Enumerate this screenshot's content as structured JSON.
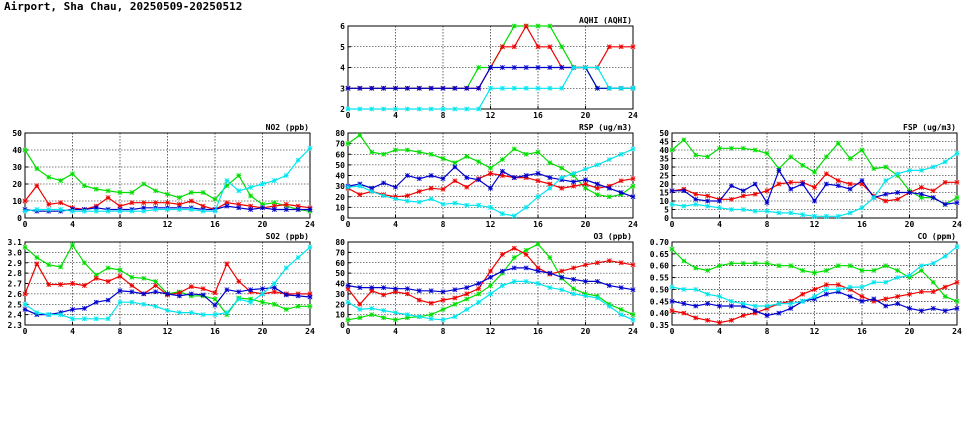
{
  "page": {
    "title": "Airport, Sha Chau, 20250509-20250512"
  },
  "series_colors": {
    "green": "#00dd00",
    "red": "#ee0000",
    "blue": "#0000cc",
    "cyan": "#00e5ee"
  },
  "chart_data": [
    {
      "id": "aqhi",
      "type": "line",
      "title": "AQHI (AQHI)",
      "x": [
        0,
        1,
        2,
        3,
        4,
        5,
        6,
        7,
        8,
        9,
        10,
        11,
        12,
        13,
        14,
        15,
        16,
        17,
        18,
        19,
        20,
        21,
        22,
        23,
        24
      ],
      "xticks": [
        0,
        4,
        8,
        12,
        16,
        20,
        24
      ],
      "ylim": [
        2,
        6
      ],
      "yticks": [
        2,
        3,
        4,
        5,
        6
      ],
      "grid": true,
      "series": [
        {
          "color": "green",
          "values": [
            3,
            3,
            3,
            3,
            3,
            3,
            3,
            3,
            3,
            3,
            3,
            4,
            4,
            5,
            6,
            6,
            6,
            6,
            5,
            4,
            4,
            3,
            3,
            3,
            3
          ]
        },
        {
          "color": "red",
          "values": [
            3,
            3,
            3,
            3,
            3,
            3,
            3,
            3,
            3,
            3,
            3,
            3,
            4,
            5,
            5,
            6,
            5,
            5,
            4,
            4,
            4,
            4,
            5,
            5,
            5
          ]
        },
        {
          "color": "blue",
          "values": [
            3,
            3,
            3,
            3,
            3,
            3,
            3,
            3,
            3,
            3,
            3,
            3,
            4,
            4,
            4,
            4,
            4,
            4,
            4,
            4,
            4,
            3,
            3,
            3,
            3
          ]
        },
        {
          "color": "cyan",
          "values": [
            2,
            2,
            2,
            2,
            2,
            2,
            2,
            2,
            2,
            2,
            2,
            2,
            3,
            3,
            3,
            3,
            3,
            3,
            3,
            4,
            4,
            4,
            3,
            3,
            3
          ]
        }
      ]
    },
    {
      "id": "no2",
      "type": "line",
      "title": "NO2 (ppb)",
      "x": [
        0,
        1,
        2,
        3,
        4,
        5,
        6,
        7,
        8,
        9,
        10,
        11,
        12,
        13,
        14,
        15,
        16,
        17,
        18,
        19,
        20,
        21,
        22,
        23,
        24
      ],
      "xticks": [
        0,
        4,
        8,
        12,
        16,
        20,
        24
      ],
      "ylim": [
        0,
        50
      ],
      "yticks": [
        0,
        10,
        20,
        30,
        40,
        50
      ],
      "grid": true,
      "series": [
        {
          "color": "green",
          "values": [
            40,
            29,
            24,
            22,
            26,
            19,
            17,
            16,
            15,
            15,
            20,
            16,
            14,
            12,
            15,
            15,
            11,
            19,
            25,
            13,
            8,
            9,
            7,
            5,
            4
          ]
        },
        {
          "color": "red",
          "values": [
            10,
            19,
            8,
            9,
            6,
            5,
            7,
            12,
            7,
            9,
            9,
            9,
            9,
            8,
            10,
            7,
            5,
            9,
            8,
            7,
            6,
            7,
            8,
            7,
            6
          ]
        },
        {
          "color": "blue",
          "values": [
            5,
            4,
            4,
            4,
            5,
            5,
            6,
            5,
            5,
            5,
            6,
            6,
            6,
            6,
            6,
            5,
            5,
            7,
            6,
            5,
            6,
            5,
            5,
            5,
            5
          ]
        },
        {
          "color": "cyan",
          "values": [
            4,
            5,
            5,
            5,
            4,
            4,
            4,
            4,
            4,
            4,
            4,
            5,
            5,
            5,
            5,
            4,
            4,
            22,
            16,
            18,
            20,
            22,
            25,
            34,
            41
          ]
        }
      ]
    },
    {
      "id": "rsp",
      "type": "line",
      "title": "RSP (ug/m3)",
      "x": [
        0,
        1,
        2,
        3,
        4,
        5,
        6,
        7,
        8,
        9,
        10,
        11,
        12,
        13,
        14,
        15,
        16,
        17,
        18,
        19,
        20,
        21,
        22,
        23,
        24
      ],
      "xticks": [
        0,
        4,
        8,
        12,
        16,
        20,
        24
      ],
      "ylim": [
        0,
        80
      ],
      "yticks": [
        0,
        10,
        20,
        30,
        40,
        50,
        60,
        70,
        80
      ],
      "grid": true,
      "series": [
        {
          "color": "green",
          "values": [
            70,
            78,
            62,
            60,
            64,
            64,
            62,
            60,
            56,
            52,
            58,
            53,
            47,
            55,
            65,
            60,
            62,
            52,
            47,
            40,
            28,
            22,
            20,
            22,
            30
          ]
        },
        {
          "color": "red",
          "values": [
            28,
            22,
            25,
            22,
            20,
            21,
            25,
            28,
            27,
            35,
            29,
            37,
            42,
            40,
            38,
            38,
            35,
            32,
            28,
            30,
            32,
            28,
            30,
            35,
            37
          ]
        },
        {
          "color": "blue",
          "values": [
            30,
            32,
            28,
            33,
            29,
            40,
            37,
            40,
            37,
            48,
            38,
            36,
            28,
            44,
            38,
            40,
            42,
            38,
            36,
            34,
            36,
            32,
            28,
            24,
            20
          ]
        },
        {
          "color": "cyan",
          "values": [
            29,
            30,
            25,
            21,
            18,
            16,
            15,
            18,
            13,
            14,
            12,
            12,
            10,
            4,
            2,
            10,
            20,
            28,
            38,
            42,
            46,
            50,
            55,
            60,
            65
          ]
        }
      ]
    },
    {
      "id": "fsp",
      "type": "line",
      "title": "FSP (ug/m3)",
      "x": [
        0,
        1,
        2,
        3,
        4,
        5,
        6,
        7,
        8,
        9,
        10,
        11,
        12,
        13,
        14,
        15,
        16,
        17,
        18,
        19,
        20,
        21,
        22,
        23,
        24
      ],
      "xticks": [
        0,
        4,
        8,
        12,
        16,
        20,
        24
      ],
      "ylim": [
        0,
        50
      ],
      "yticks": [
        0,
        5,
        10,
        15,
        20,
        25,
        30,
        35,
        40,
        45,
        50
      ],
      "grid": true,
      "series": [
        {
          "color": "green",
          "values": [
            40,
            46,
            37,
            36,
            41,
            41,
            41,
            40,
            38,
            29,
            36,
            31,
            27,
            36,
            44,
            35,
            40,
            29,
            30,
            25,
            16,
            12,
            12,
            8,
            12
          ]
        },
        {
          "color": "red",
          "values": [
            16,
            17,
            14,
            13,
            11,
            11,
            13,
            14,
            16,
            20,
            21,
            21,
            18,
            26,
            22,
            20,
            20,
            13,
            10,
            11,
            15,
            18,
            16,
            21,
            21
          ]
        },
        {
          "color": "blue",
          "values": [
            16,
            16,
            11,
            10,
            10,
            19,
            16,
            20,
            9,
            28,
            17,
            20,
            10,
            20,
            19,
            17,
            22,
            12,
            14,
            15,
            15,
            14,
            12,
            8,
            9
          ]
        },
        {
          "color": "cyan",
          "values": [
            8,
            7,
            8,
            7,
            6,
            5,
            5,
            4,
            4,
            3,
            3,
            2,
            1,
            1,
            1,
            3,
            6,
            12,
            22,
            26,
            28,
            28,
            30,
            33,
            38
          ]
        }
      ]
    },
    {
      "id": "so2",
      "type": "line",
      "title": "SO2 (ppb)",
      "x": [
        0,
        1,
        2,
        3,
        4,
        5,
        6,
        7,
        8,
        9,
        10,
        11,
        12,
        13,
        14,
        15,
        16,
        17,
        18,
        19,
        20,
        21,
        22,
        23,
        24
      ],
      "xticks": [
        0,
        4,
        8,
        12,
        16,
        20,
        24
      ],
      "ylim": [
        2.3,
        3.1
      ],
      "yticks": [
        2.3,
        2.4,
        2.5,
        2.6,
        2.7,
        2.8,
        2.9,
        3.0,
        3.1
      ],
      "grid": true,
      "series": [
        {
          "color": "green",
          "values": [
            3.05,
            2.95,
            2.88,
            2.86,
            3.07,
            2.9,
            2.78,
            2.85,
            2.83,
            2.76,
            2.75,
            2.72,
            2.6,
            2.62,
            2.58,
            2.58,
            2.55,
            2.4,
            2.56,
            2.55,
            2.52,
            2.5,
            2.45,
            2.48,
            2.48
          ]
        },
        {
          "color": "red",
          "values": [
            2.6,
            2.89,
            2.69,
            2.69,
            2.7,
            2.68,
            2.75,
            2.72,
            2.77,
            2.68,
            2.6,
            2.68,
            2.59,
            2.61,
            2.67,
            2.65,
            2.61,
            2.89,
            2.72,
            2.62,
            2.6,
            2.62,
            2.6,
            2.6,
            2.6
          ]
        },
        {
          "color": "blue",
          "values": [
            2.45,
            2.4,
            2.4,
            2.42,
            2.45,
            2.46,
            2.52,
            2.54,
            2.63,
            2.62,
            2.6,
            2.62,
            2.6,
            2.58,
            2.6,
            2.59,
            2.49,
            2.64,
            2.62,
            2.64,
            2.65,
            2.66,
            2.59,
            2.58,
            2.57
          ]
        },
        {
          "color": "cyan",
          "values": [
            2.5,
            2.42,
            2.4,
            2.4,
            2.36,
            2.36,
            2.36,
            2.36,
            2.52,
            2.52,
            2.5,
            2.48,
            2.44,
            2.42,
            2.42,
            2.4,
            2.4,
            2.42,
            2.55,
            2.52,
            2.6,
            2.7,
            2.85,
            2.95,
            3.05
          ]
        }
      ]
    },
    {
      "id": "o3",
      "type": "line",
      "title": "O3 (ppb)",
      "x": [
        0,
        1,
        2,
        3,
        4,
        5,
        6,
        7,
        8,
        9,
        10,
        11,
        12,
        13,
        14,
        15,
        16,
        17,
        18,
        19,
        20,
        21,
        22,
        23,
        24
      ],
      "xticks": [
        0,
        4,
        8,
        12,
        16,
        20,
        24
      ],
      "ylim": [
        0,
        80
      ],
      "yticks": [
        0,
        10,
        20,
        30,
        40,
        50,
        60,
        70,
        80
      ],
      "grid": true,
      "series": [
        {
          "color": "green",
          "values": [
            5,
            7,
            10,
            7,
            5,
            7,
            8,
            10,
            15,
            20,
            25,
            30,
            38,
            50,
            65,
            72,
            78,
            65,
            45,
            35,
            30,
            28,
            20,
            15,
            10
          ]
        },
        {
          "color": "red",
          "values": [
            35,
            20,
            33,
            29,
            32,
            30,
            24,
            21,
            24,
            26,
            30,
            35,
            52,
            68,
            74,
            68,
            55,
            49,
            52,
            55,
            58,
            60,
            62,
            60,
            58
          ]
        },
        {
          "color": "blue",
          "values": [
            38,
            36,
            36,
            36,
            35,
            35,
            33,
            33,
            32,
            34,
            36,
            40,
            46,
            52,
            55,
            55,
            52,
            50,
            46,
            44,
            42,
            42,
            38,
            36,
            34
          ]
        },
        {
          "color": "cyan",
          "values": [
            22,
            15,
            16,
            14,
            12,
            10,
            8,
            6,
            5,
            8,
            15,
            22,
            30,
            38,
            42,
            42,
            40,
            36,
            34,
            30,
            28,
            26,
            18,
            10,
            5
          ]
        }
      ]
    },
    {
      "id": "co",
      "type": "line",
      "title": "CO (ppm)",
      "x": [
        0,
        1,
        2,
        3,
        4,
        5,
        6,
        7,
        8,
        9,
        10,
        11,
        12,
        13,
        14,
        15,
        16,
        17,
        18,
        19,
        20,
        21,
        22,
        23,
        24
      ],
      "xticks": [
        0,
        4,
        8,
        12,
        16,
        20,
        24
      ],
      "ylim": [
        0.35,
        0.7
      ],
      "yticks": [
        0.35,
        0.4,
        0.45,
        0.5,
        0.55,
        0.6,
        0.65,
        0.7
      ],
      "grid": true,
      "series": [
        {
          "color": "green",
          "values": [
            0.67,
            0.62,
            0.59,
            0.58,
            0.6,
            0.61,
            0.61,
            0.61,
            0.61,
            0.6,
            0.6,
            0.58,
            0.57,
            0.58,
            0.6,
            0.6,
            0.58,
            0.58,
            0.6,
            0.58,
            0.55,
            0.58,
            0.53,
            0.47,
            0.45
          ]
        },
        {
          "color": "red",
          "values": [
            0.41,
            0.4,
            0.38,
            0.37,
            0.36,
            0.37,
            0.39,
            0.4,
            0.42,
            0.44,
            0.45,
            0.48,
            0.5,
            0.52,
            0.52,
            0.5,
            0.47,
            0.45,
            0.46,
            0.47,
            0.48,
            0.49,
            0.49,
            0.51,
            0.53
          ]
        },
        {
          "color": "blue",
          "values": [
            0.45,
            0.44,
            0.43,
            0.44,
            0.43,
            0.43,
            0.43,
            0.41,
            0.39,
            0.4,
            0.42,
            0.45,
            0.46,
            0.48,
            0.49,
            0.47,
            0.45,
            0.46,
            0.43,
            0.44,
            0.42,
            0.41,
            0.42,
            0.41,
            0.42
          ]
        },
        {
          "color": "cyan",
          "values": [
            0.51,
            0.5,
            0.5,
            0.48,
            0.47,
            0.45,
            0.44,
            0.43,
            0.43,
            0.44,
            0.44,
            0.45,
            0.47,
            0.5,
            0.5,
            0.51,
            0.51,
            0.53,
            0.53,
            0.55,
            0.56,
            0.6,
            0.61,
            0.64,
            0.68
          ]
        }
      ]
    }
  ]
}
